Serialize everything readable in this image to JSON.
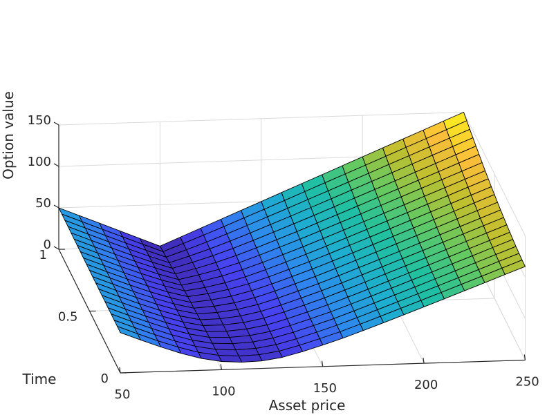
{
  "chart_data": {
    "type": "surface",
    "title": "",
    "xlabel": "Asset price",
    "ylabel": "Time",
    "zlabel": "Option value",
    "xlim": [
      50,
      250
    ],
    "ylim": [
      0,
      1
    ],
    "zlim": [
      0,
      150
    ],
    "x_ticks": [
      50,
      100,
      150,
      200,
      250
    ],
    "x_tick_labels": [
      "50",
      "100",
      "150",
      "200",
      "250"
    ],
    "y_ticks": [
      0,
      0.5,
      1
    ],
    "y_tick_labels": [
      "0",
      "0.5",
      "1"
    ],
    "z_ticks": [
      0,
      50,
      100,
      150
    ],
    "z_tick_labels": [
      "0",
      "50",
      "100",
      "150"
    ],
    "grid": true,
    "colormap": "parula",
    "colormap_stops": [
      "#3e26a8",
      "#4743f1",
      "#2d8aed",
      "#1eaecf",
      "#21c0a1",
      "#64c961",
      "#c0c02f",
      "#fbbe3a",
      "#f9fb15"
    ],
    "strike": 100,
    "asset_price": [
      50,
      60,
      70,
      80,
      90,
      100,
      110,
      120,
      130,
      140,
      150,
      160,
      170,
      180,
      190,
      200,
      210,
      220,
      230,
      240,
      250
    ],
    "time": [
      0,
      0.05,
      0.1,
      0.15,
      0.2,
      0.25,
      0.3,
      0.35,
      0.4,
      0.45,
      0.5,
      0.55,
      0.6,
      0.65,
      0.7,
      0.75,
      0.8,
      0.85,
      0.9,
      0.95,
      1
    ],
    "value_at_time_0": [
      48.6,
      39.0,
      29.7,
      21.3,
      14.3,
      9.9,
      8.2,
      9.0,
      12.6,
      18.7,
      25.9,
      33.4,
      41.8,
      50.5,
      59.3,
      68.1,
      77.0,
      86.0,
      95.0,
      104.0,
      113.0
    ],
    "value_at_time_1": [
      50,
      40,
      30,
      20,
      10,
      0,
      10,
      20,
      30,
      40,
      50,
      60,
      70,
      80,
      90,
      100,
      110,
      120,
      130,
      140,
      150
    ]
  }
}
